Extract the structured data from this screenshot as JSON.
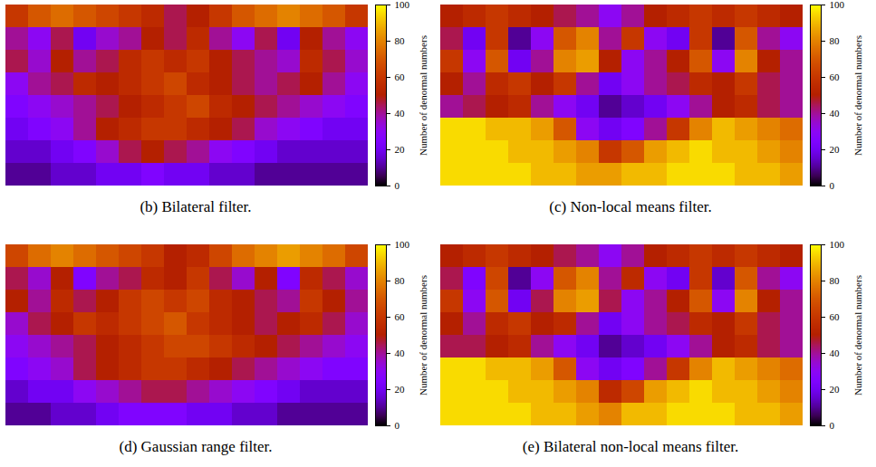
{
  "chart_data": [
    {
      "type": "heatmap",
      "title": "(b) Bilateral filter.",
      "tick_labels": false,
      "cells": [
        [
          60,
          70,
          75,
          70,
          65,
          60,
          55,
          45,
          50,
          60,
          70,
          75,
          80,
          75,
          70,
          60
        ],
        [
          40,
          30,
          45,
          20,
          35,
          40,
          50,
          45,
          55,
          40,
          30,
          45,
          20,
          50,
          40,
          30
        ],
        [
          45,
          35,
          50,
          40,
          45,
          55,
          60,
          55,
          60,
          50,
          45,
          40,
          35,
          55,
          45,
          35
        ],
        [
          30,
          40,
          45,
          55,
          50,
          55,
          60,
          65,
          55,
          50,
          45,
          40,
          45,
          50,
          40,
          30
        ],
        [
          25,
          30,
          35,
          40,
          45,
          50,
          55,
          60,
          65,
          55,
          50,
          45,
          40,
          35,
          30,
          25
        ],
        [
          20,
          25,
          30,
          40,
          50,
          55,
          60,
          60,
          55,
          50,
          45,
          35,
          30,
          25,
          20,
          20
        ],
        [
          15,
          15,
          20,
          25,
          35,
          45,
          50,
          45,
          40,
          30,
          25,
          20,
          15,
          15,
          15,
          15
        ],
        [
          10,
          10,
          15,
          15,
          20,
          20,
          25,
          20,
          20,
          15,
          15,
          10,
          10,
          10,
          10,
          10
        ]
      ],
      "colorbar": {
        "range": [
          0,
          100
        ],
        "ticks": [
          0,
          20,
          40,
          60,
          80,
          100
        ],
        "label": "Number of denormal numbers"
      }
    },
    {
      "type": "heatmap",
      "title": "(c) Non-local means filter.",
      "tick_labels": false,
      "cells": [
        [
          50,
          55,
          60,
          55,
          50,
          45,
          40,
          30,
          40,
          50,
          55,
          60,
          55,
          60,
          55,
          50
        ],
        [
          45,
          20,
          60,
          10,
          30,
          70,
          80,
          40,
          60,
          30,
          20,
          60,
          10,
          70,
          40,
          30
        ],
        [
          60,
          30,
          70,
          20,
          40,
          80,
          85,
          50,
          30,
          40,
          50,
          70,
          30,
          80,
          50,
          40
        ],
        [
          50,
          40,
          55,
          60,
          50,
          60,
          40,
          20,
          30,
          40,
          45,
          55,
          50,
          60,
          45,
          40
        ],
        [
          40,
          45,
          50,
          55,
          40,
          30,
          20,
          10,
          15,
          20,
          30,
          40,
          50,
          55,
          45,
          40
        ],
        [
          95,
          95,
          90,
          90,
          85,
          70,
          30,
          20,
          25,
          40,
          60,
          80,
          90,
          85,
          80,
          75
        ],
        [
          95,
          95,
          95,
          90,
          90,
          85,
          80,
          60,
          70,
          85,
          90,
          95,
          90,
          90,
          85,
          80
        ],
        [
          95,
          95,
          95,
          95,
          90,
          90,
          85,
          85,
          90,
          90,
          95,
          95,
          95,
          90,
          90,
          85
        ]
      ],
      "colorbar": {
        "range": [
          0,
          100
        ],
        "ticks": [
          0,
          20,
          40,
          60,
          80,
          100
        ],
        "label": "Number of denormal numbers"
      }
    },
    {
      "type": "heatmap",
      "title": "(d) Gaussian range filter.",
      "tick_labels": false,
      "cells": [
        [
          65,
          75,
          80,
          75,
          70,
          65,
          60,
          50,
          55,
          65,
          75,
          80,
          85,
          80,
          75,
          65
        ],
        [
          45,
          35,
          50,
          25,
          40,
          45,
          55,
          50,
          60,
          45,
          35,
          50,
          25,
          55,
          45,
          35
        ],
        [
          50,
          40,
          55,
          45,
          50,
          60,
          65,
          60,
          65,
          55,
          50,
          45,
          40,
          60,
          50,
          40
        ],
        [
          35,
          45,
          50,
          60,
          55,
          60,
          65,
          70,
          60,
          55,
          50,
          45,
          50,
          55,
          45,
          35
        ],
        [
          30,
          35,
          40,
          45,
          50,
          55,
          60,
          65,
          65,
          60,
          55,
          50,
          45,
          40,
          35,
          30
        ],
        [
          25,
          30,
          35,
          45,
          50,
          55,
          60,
          60,
          55,
          50,
          45,
          40,
          35,
          30,
          25,
          25
        ],
        [
          15,
          20,
          20,
          30,
          35,
          40,
          45,
          45,
          40,
          35,
          30,
          25,
          20,
          15,
          15,
          15
        ],
        [
          10,
          10,
          15,
          15,
          20,
          25,
          25,
          25,
          20,
          20,
          15,
          15,
          10,
          10,
          10,
          10
        ]
      ],
      "colorbar": {
        "range": [
          0,
          100
        ],
        "ticks": [
          0,
          20,
          40,
          60,
          80,
          100
        ],
        "label": "Number of denormal numbers"
      }
    },
    {
      "type": "heatmap",
      "title": "(e) Bilateral non-local means filter.",
      "tick_labels": false,
      "cells": [
        [
          50,
          55,
          60,
          55,
          50,
          45,
          40,
          30,
          40,
          50,
          55,
          60,
          55,
          60,
          55,
          50
        ],
        [
          45,
          25,
          65,
          10,
          30,
          70,
          80,
          40,
          55,
          30,
          20,
          60,
          15,
          70,
          40,
          30
        ],
        [
          60,
          30,
          70,
          20,
          45,
          80,
          85,
          45,
          30,
          40,
          50,
          70,
          30,
          80,
          50,
          40
        ],
        [
          50,
          40,
          55,
          60,
          50,
          55,
          40,
          20,
          30,
          40,
          45,
          55,
          50,
          60,
          45,
          40
        ],
        [
          45,
          45,
          50,
          55,
          40,
          30,
          20,
          10,
          15,
          20,
          30,
          40,
          50,
          55,
          45,
          40
        ],
        [
          95,
          95,
          90,
          90,
          85,
          70,
          30,
          20,
          25,
          40,
          60,
          80,
          90,
          85,
          80,
          75
        ],
        [
          95,
          95,
          95,
          90,
          90,
          85,
          80,
          55,
          65,
          85,
          90,
          95,
          90,
          90,
          85,
          80
        ],
        [
          95,
          95,
          95,
          95,
          90,
          90,
          85,
          80,
          90,
          90,
          95,
          95,
          95,
          90,
          90,
          85
        ]
      ],
      "colorbar": {
        "range": [
          0,
          100
        ],
        "ticks": [
          0,
          20,
          40,
          60,
          80,
          100
        ],
        "label": "Number of denormal numbers"
      }
    }
  ]
}
